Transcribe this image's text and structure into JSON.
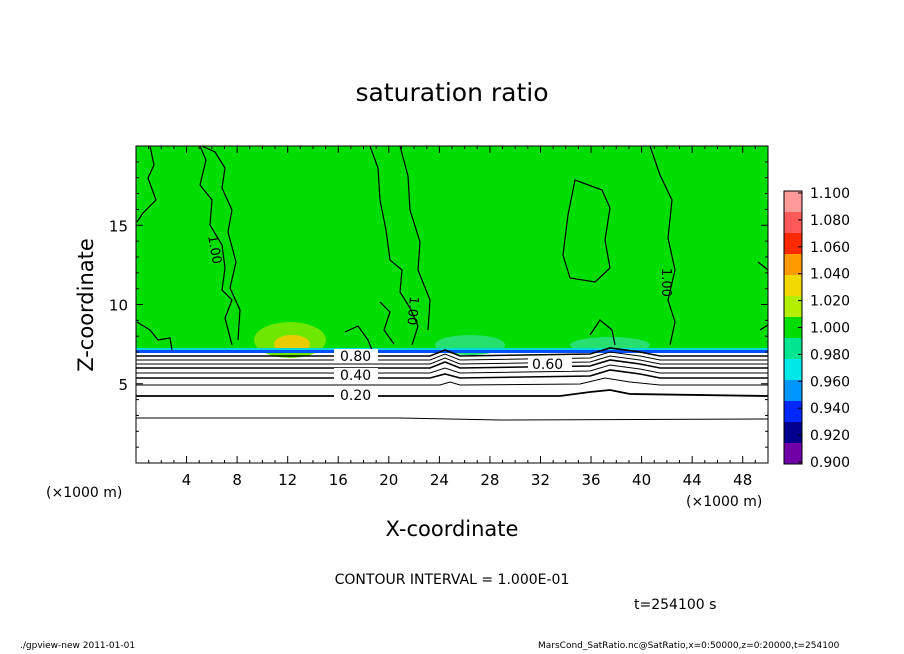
{
  "chart_data": {
    "type": "heatmap",
    "title": "saturation ratio",
    "xlabel": "X-coordinate",
    "ylabel": "Z-coordinate",
    "x_unit_label": "(×1000 m)",
    "y_unit_label": "(×1000 m)",
    "xlim": [
      0,
      50
    ],
    "ylim": [
      0,
      20
    ],
    "x_ticks": [
      "4",
      "8",
      "12",
      "16",
      "20",
      "24",
      "28",
      "32",
      "36",
      "40",
      "44",
      "48"
    ],
    "y_ticks": [
      "5",
      "10",
      "15"
    ],
    "colorbar": {
      "labels": [
        "1.100",
        "1.080",
        "1.060",
        "1.040",
        "1.020",
        "1.000",
        "0.980",
        "0.960",
        "0.940",
        "0.920",
        "0.900"
      ],
      "colors": [
        "#ff9a9a",
        "#ff5a5a",
        "#ff2a00",
        "#ff9a00",
        "#f0d800",
        "#b4ee00",
        "#00dd00",
        "#00e690",
        "#00e8e8",
        "#0096ff",
        "#0028ff",
        "#00008c",
        "#7000a8"
      ]
    },
    "contour_interval_text": "CONTOUR INTERVAL = 1.000E-01",
    "time_text": "t=254100 s",
    "contour_labels": [
      "0.80",
      "0.60",
      "0.40",
      "0.20",
      "1.00",
      "1.00",
      "1.00"
    ],
    "field_color": "#00dd00"
  },
  "footer": {
    "left": "./gpview-new   2011-01-01",
    "right": "MarsCond_SatRatio.nc@SatRatio,x=0:50000,z=0:20000,t=254100"
  }
}
